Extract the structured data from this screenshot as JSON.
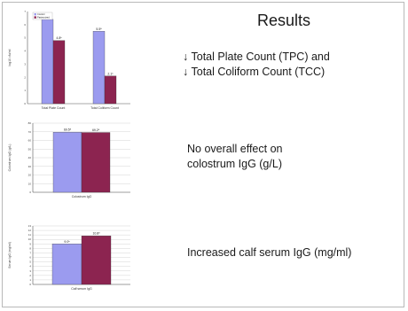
{
  "slide": {
    "title": "Results",
    "findings": [
      {
        "lines": [
          "↓ Total Plate Count (TPC) and",
          "↓ Total Coliform Count (TCC)"
        ]
      },
      {
        "lines": [
          "No overall effect on",
          "colostrum IgG (g/L)"
        ]
      },
      {
        "lines": [
          "Increased calf serum IgG (mg/ml)"
        ]
      }
    ]
  },
  "colors": {
    "control": "#9b9bef",
    "treated": "#8c2450"
  },
  "chart_data": [
    {
      "type": "bar",
      "categories": [
        "Total Plate Count",
        "Total Coliform Count"
      ],
      "series": [
        {
          "name": "Control",
          "values": [
            6.4,
            5.5
          ]
        },
        {
          "name": "Pasteurized",
          "values": [
            4.8,
            2.1
          ]
        }
      ],
      "data_labels": [
        [
          "6.4ª",
          "5.5ª"
        ],
        [
          "4.8ᵇ",
          "2.1ᵇ"
        ]
      ],
      "ylabel": "log10 cfu/ml",
      "ylim": [
        0,
        7
      ],
      "yticks": [
        0,
        1,
        2,
        3,
        4,
        5,
        6,
        7
      ],
      "legend": "top-left",
      "grid": false
    },
    {
      "type": "bar",
      "categories": [
        "Colostrum IgG"
      ],
      "series": [
        {
          "name": "Control",
          "values": [
            69.5
          ]
        },
        {
          "name": "Pasteurized",
          "values": [
            69.2
          ]
        }
      ],
      "data_labels": [
        [
          "69.5ª"
        ],
        [
          "69.2ª"
        ]
      ],
      "ylabel": "Colostrum IgG (g/L)",
      "ylim": [
        0,
        80
      ],
      "yticks": [
        0,
        10,
        20,
        30,
        40,
        50,
        60,
        70,
        80
      ],
      "grid": true
    },
    {
      "type": "bar",
      "categories": [
        "Calf serum IgG"
      ],
      "series": [
        {
          "name": "Control",
          "values": [
            9.0
          ]
        },
        {
          "name": "Pasteurized",
          "values": [
            10.8
          ]
        }
      ],
      "data_labels": [
        [
          "9.0ᵇ"
        ],
        [
          "10.8ª"
        ]
      ],
      "ylabel": "Serum IgG (mg/ml)",
      "ylim": [
        0,
        13
      ],
      "yticks": [
        0,
        1,
        2,
        3,
        4,
        5,
        6,
        7,
        8,
        9,
        10,
        11,
        12,
        13
      ],
      "grid": true
    }
  ]
}
